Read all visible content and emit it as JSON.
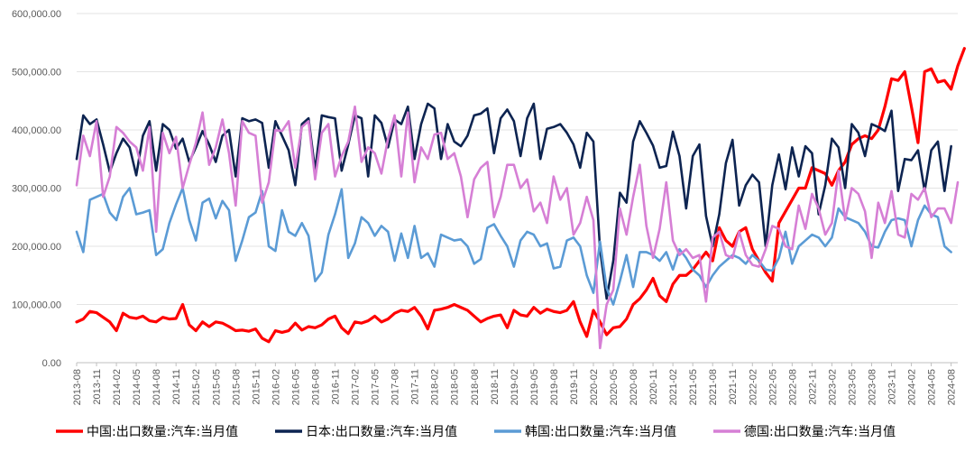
{
  "chart_data": {
    "type": "line",
    "title": "",
    "xlabel": "",
    "ylabel": "",
    "ylim": [
      0,
      600000
    ],
    "y_ticks": [
      0,
      100000,
      200000,
      300000,
      400000,
      500000,
      600000
    ],
    "y_tick_labels": [
      "0.00",
      "100,000.00",
      "200,000.00",
      "300,000.00",
      "400,000.00",
      "500,000.00",
      "600,000.00"
    ],
    "grid": true,
    "legend_position": "bottom",
    "x_tick_labels": [
      "2013-08",
      "2013-11",
      "2014-02",
      "2014-05",
      "2014-08",
      "2014-11",
      "2015-02",
      "2015-05",
      "2015-08",
      "2015-11",
      "2016-02",
      "2016-05",
      "2016-08",
      "2016-11",
      "2017-02",
      "2017-05",
      "2017-08",
      "2017-11",
      "2018-02",
      "2018-05",
      "2018-08",
      "2018-11",
      "2019-02",
      "2019-05",
      "2019-08",
      "2019-11",
      "2020-02",
      "2020-05",
      "2020-08",
      "2020-11",
      "2021-02",
      "2021-05",
      "2021-08",
      "2021-11",
      "2022-02",
      "2022-05",
      "2022-08",
      "2022-11",
      "2023-02",
      "2023-05",
      "2023-08",
      "2023-11",
      "2024-02",
      "2024-05",
      "2024-08"
    ],
    "x_start": "2013-08",
    "x_end": "2024-09",
    "series": [
      {
        "name": "中国:出口数量:汽车:当月值",
        "color": "#ff0000",
        "width": 3.2,
        "values": [
          70000,
          75000,
          88000,
          86000,
          78000,
          70000,
          55000,
          85000,
          78000,
          76000,
          80000,
          72000,
          70000,
          78000,
          75000,
          76000,
          100000,
          65000,
          55000,
          70000,
          62000,
          70000,
          68000,
          62000,
          55000,
          56000,
          54000,
          58000,
          42000,
          36000,
          55000,
          52000,
          55000,
          68000,
          56000,
          62000,
          60000,
          65000,
          75000,
          80000,
          60000,
          50000,
          70000,
          68000,
          72000,
          80000,
          70000,
          75000,
          85000,
          90000,
          88000,
          95000,
          80000,
          58000,
          90000,
          92000,
          95000,
          100000,
          95000,
          90000,
          80000,
          70000,
          76000,
          80000,
          82000,
          60000,
          90000,
          82000,
          80000,
          95000,
          85000,
          92000,
          88000,
          86000,
          90000,
          105000,
          70000,
          45000,
          90000,
          70000,
          48000,
          60000,
          62000,
          75000,
          100000,
          110000,
          125000,
          145000,
          115000,
          105000,
          135000,
          150000,
          150000,
          160000,
          175000,
          190000,
          175000,
          232000,
          210000,
          200000,
          225000,
          232000,
          195000,
          175000,
          155000,
          140000,
          240000,
          260000,
          280000,
          300000,
          300000,
          335000,
          330000,
          325000,
          305000,
          330000,
          345000,
          375000,
          385000,
          390000,
          385000,
          400000,
          440000,
          488000,
          485000,
          500000,
          440000,
          378000,
          500000,
          505000,
          482000,
          485000,
          470000,
          510000,
          540000
        ]
      },
      {
        "name": "日本:出口数量:汽车:当月值",
        "color": "#0d2451",
        "width": 2.6,
        "values": [
          350000,
          425000,
          410000,
          418000,
          375000,
          328000,
          360000,
          385000,
          370000,
          322000,
          390000,
          415000,
          330000,
          410000,
          400000,
          368000,
          385000,
          345000,
          370000,
          398000,
          375000,
          345000,
          390000,
          400000,
          320000,
          420000,
          415000,
          418000,
          412000,
          335000,
          415000,
          390000,
          365000,
          305000,
          410000,
          420000,
          330000,
          425000,
          422000,
          420000,
          330000,
          375000,
          425000,
          420000,
          320000,
          425000,
          412000,
          370000,
          418000,
          410000,
          440000,
          350000,
          410000,
          445000,
          437000,
          350000,
          410000,
          380000,
          372000,
          390000,
          425000,
          428000,
          437000,
          360000,
          420000,
          435000,
          415000,
          355000,
          420000,
          445000,
          350000,
          402000,
          405000,
          410000,
          395000,
          375000,
          335000,
          395000,
          380000,
          195000,
          110000,
          175000,
          292000,
          275000,
          380000,
          415000,
          395000,
          373000,
          335000,
          338000,
          397000,
          355000,
          265000,
          355000,
          375000,
          252000,
          200000,
          255000,
          343000,
          383000,
          270000,
          305000,
          323000,
          310000,
          200000,
          305000,
          358000,
          298000,
          370000,
          320000,
          372000,
          360000,
          255000,
          305000,
          385000,
          370000,
          300000,
          410000,
          395000,
          355000,
          410000,
          405000,
          398000,
          433000,
          295000,
          350000,
          348000,
          365000,
          295000,
          365000,
          380000,
          295000,
          372000
        ]
      },
      {
        "name": "韩国:出口数量:汽车:当月值",
        "color": "#5b9bd5",
        "width": 2.6,
        "values": [
          225000,
          190000,
          280000,
          285000,
          290000,
          258000,
          245000,
          285000,
          300000,
          255000,
          258000,
          262000,
          185000,
          195000,
          240000,
          272000,
          300000,
          245000,
          210000,
          275000,
          282000,
          248000,
          278000,
          262000,
          175000,
          210000,
          250000,
          258000,
          295000,
          200000,
          192000,
          262000,
          225000,
          218000,
          240000,
          218000,
          140000,
          155000,
          220000,
          255000,
          298000,
          180000,
          205000,
          250000,
          240000,
          218000,
          235000,
          225000,
          175000,
          222000,
          180000,
          235000,
          180000,
          188000,
          165000,
          220000,
          215000,
          210000,
          212000,
          200000,
          170000,
          178000,
          232000,
          238000,
          218000,
          200000,
          165000,
          210000,
          225000,
          220000,
          200000,
          205000,
          162000,
          165000,
          210000,
          215000,
          200000,
          150000,
          120000,
          208000,
          128000,
          100000,
          140000,
          185000,
          130000,
          190000,
          190000,
          185000,
          175000,
          190000,
          160000,
          195000,
          180000,
          160000,
          150000,
          130000,
          150000,
          165000,
          175000,
          185000,
          180000,
          170000,
          185000,
          175000,
          160000,
          158000,
          180000,
          225000,
          170000,
          200000,
          210000,
          220000,
          215000,
          200000,
          215000,
          265000,
          250000,
          245000,
          240000,
          225000,
          200000,
          198000,
          225000,
          245000,
          248000,
          245000,
          200000,
          245000,
          270000,
          255000,
          250000,
          200000,
          190000
        ]
      },
      {
        "name": "德国:出口数量:汽车:当月值",
        "color": "#d67fd5",
        "width": 2.6,
        "values": [
          305000,
          390000,
          355000,
          415000,
          285000,
          320000,
          405000,
          395000,
          380000,
          370000,
          330000,
          405000,
          225000,
          395000,
          360000,
          388000,
          300000,
          340000,
          378000,
          430000,
          340000,
          370000,
          418000,
          360000,
          270000,
          415000,
          395000,
          390000,
          275000,
          310000,
          400000,
          398000,
          415000,
          335000,
          405000,
          415000,
          315000,
          395000,
          410000,
          320000,
          355000,
          380000,
          440000,
          345000,
          370000,
          360000,
          325000,
          385000,
          425000,
          320000,
          430000,
          310000,
          370000,
          350000,
          392000,
          395000,
          350000,
          360000,
          320000,
          250000,
          315000,
          335000,
          345000,
          250000,
          285000,
          340000,
          340000,
          300000,
          315000,
          260000,
          275000,
          240000,
          320000,
          280000,
          300000,
          220000,
          240000,
          285000,
          245000,
          25000,
          100000,
          125000,
          265000,
          220000,
          285000,
          340000,
          235000,
          180000,
          230000,
          310000,
          210000,
          185000,
          195000,
          180000,
          185000,
          105000,
          215000,
          225000,
          185000,
          180000,
          225000,
          185000,
          168000,
          165000,
          195000,
          235000,
          230000,
          200000,
          195000,
          270000,
          230000,
          290000,
          265000,
          220000,
          240000,
          330000,
          245000,
          300000,
          290000,
          260000,
          180000,
          275000,
          240000,
          295000,
          220000,
          215000,
          290000,
          280000,
          300000,
          250000,
          265000,
          265000,
          240000,
          310000
        ]
      }
    ]
  }
}
